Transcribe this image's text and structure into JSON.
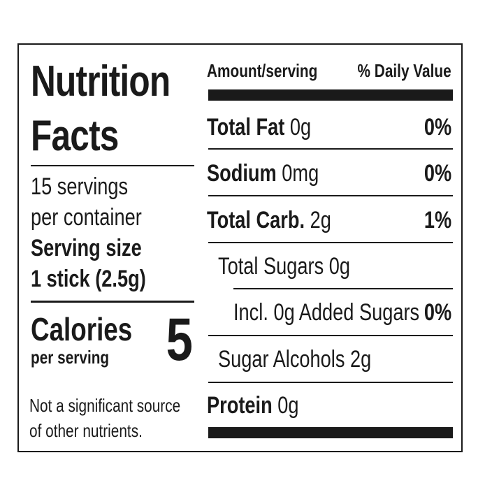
{
  "title_line1": "Nutrition",
  "title_line2": "Facts",
  "servings_line1": "15 servings",
  "servings_line2": "per container",
  "serving_size_label": "Serving size",
  "serving_size_value": "1 stick (2.5g)",
  "calories_label": "Calories",
  "calories_sub": "per serving",
  "calories_value": "5",
  "note_line1": "Not a significant source",
  "note_line2": "of other nutrients.",
  "header_amount": "Amount/serving",
  "header_dv": "% Daily Value",
  "rows": [
    {
      "name": "Total Fat",
      "amount": "0g",
      "dv": "0%"
    },
    {
      "name": "Sodium",
      "amount": "0mg",
      "dv": "0%"
    },
    {
      "name": "Total Carb.",
      "amount": "2g",
      "dv": "1%"
    },
    {
      "name": "Total Sugars 0g",
      "amount": "",
      "dv": ""
    },
    {
      "name": "Incl. 0g Added Sugars",
      "amount": "",
      "dv": "0%"
    },
    {
      "name": "Sugar Alcohols 2g",
      "amount": "",
      "dv": ""
    },
    {
      "name": "Protein",
      "amount": "0g",
      "dv": ""
    }
  ]
}
